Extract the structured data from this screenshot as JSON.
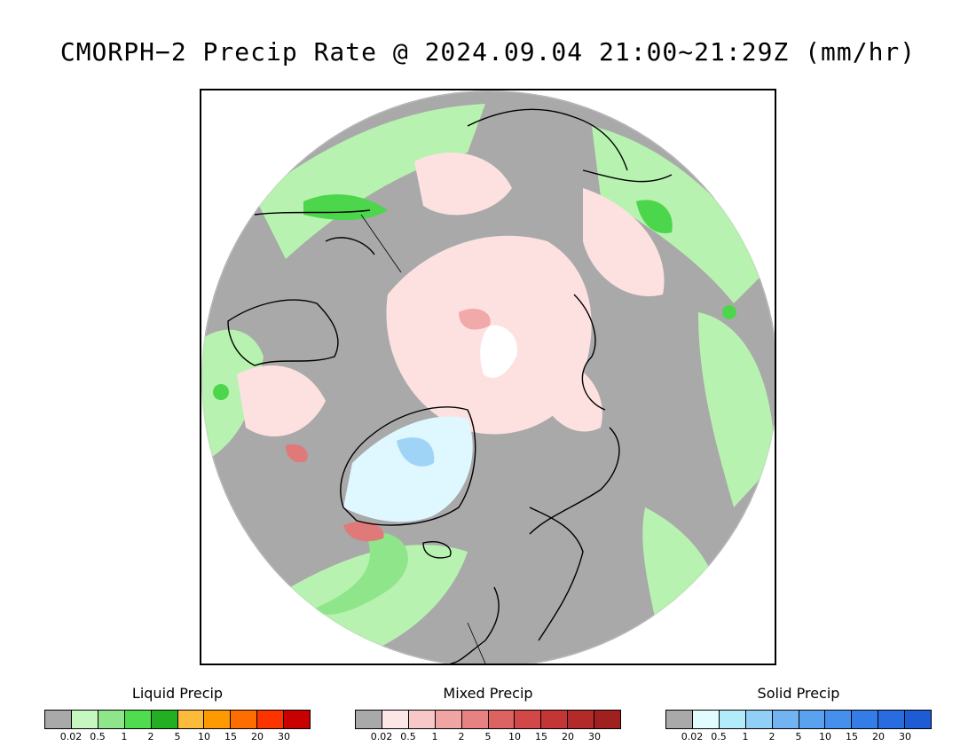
{
  "title": "CMORPH−2 Precip Rate @ 2024.09.04 21:00~21:29Z (mm/hr)",
  "map": {
    "projection": "north-polar-stereographic",
    "colors": {
      "no_precip": "#a9a9a9",
      "liquid_light": "#b8f2b0",
      "liquid_mid": "#8fe58a",
      "liquid_heavy": "#4cd64c",
      "liquid_strong": "#2ab52a",
      "mixed_light": "#fde1e1",
      "mixed_mid": "#f2a9a9",
      "mixed_heavy": "#e07a7a",
      "solid_light": "#dff7ff",
      "solid_mid": "#9fd4f7",
      "polar_gap": "#ffffff",
      "outline": "#000000"
    }
  },
  "legends": [
    {
      "title": "Liquid Precip",
      "colors": [
        "#a9a9a9",
        "#c6f7c0",
        "#8fe58a",
        "#4fdd4f",
        "#22b022",
        "#fdbb3c",
        "#fd9a00",
        "#fd6d00",
        "#fd3300",
        "#c80000"
      ],
      "ticks": [
        "0.02",
        "0.5",
        "1",
        "2",
        "5",
        "10",
        "15",
        "20",
        "30"
      ]
    },
    {
      "title": "Mixed Precip",
      "colors": [
        "#a9a9a9",
        "#fde6e6",
        "#f8c8c8",
        "#f0a4a4",
        "#e88282",
        "#dd6262",
        "#d24848",
        "#c43636",
        "#b22a2a",
        "#a02020"
      ],
      "ticks": [
        "0.02",
        "0.5",
        "1",
        "2",
        "5",
        "10",
        "15",
        "20",
        "30"
      ]
    },
    {
      "title": "Solid Precip",
      "colors": [
        "#a9a9a9",
        "#e1fbff",
        "#b2ecfb",
        "#92cff7",
        "#72b4f2",
        "#5aa2ef",
        "#4590ec",
        "#357de6",
        "#286ce0",
        "#1e5cd6"
      ],
      "ticks": [
        "0.02",
        "0.5",
        "1",
        "2",
        "5",
        "10",
        "15",
        "20",
        "30"
      ]
    }
  ]
}
